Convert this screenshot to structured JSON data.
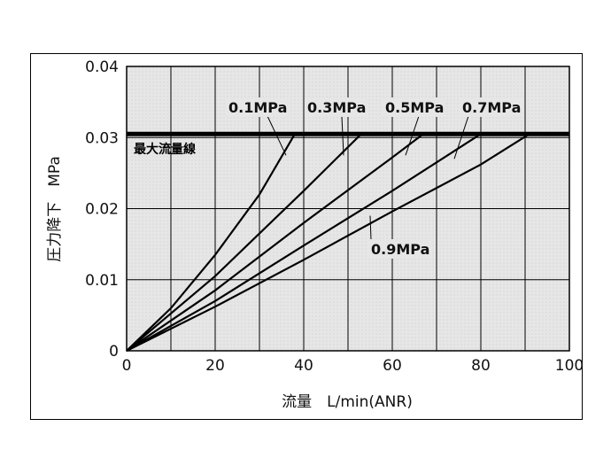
{
  "chart_data": {
    "type": "line",
    "title": "",
    "xlabel": "流量　L/min(ANR)",
    "ylabel": "圧力降下　MPa",
    "xlim": [
      0,
      100
    ],
    "ylim": [
      0,
      0.04
    ],
    "grid": true,
    "x_ticks": [
      "0",
      "20",
      "40",
      "60",
      "80",
      "100"
    ],
    "y_ticks": [
      "0",
      "0.01",
      "0.02",
      "0.03",
      "0.04"
    ],
    "max_flow_line": {
      "label": "最大流量線",
      "y": 0.0305
    },
    "series": [
      {
        "name": "0.1MPa",
        "points": [
          [
            0,
            0
          ],
          [
            10,
            0.006
          ],
          [
            20,
            0.0135
          ],
          [
            30,
            0.022
          ],
          [
            38,
            0.0305
          ]
        ],
        "label_at": [
          36,
          0.0275
        ]
      },
      {
        "name": "0.3MPa",
        "points": [
          [
            0,
            0
          ],
          [
            20,
            0.0105
          ],
          [
            40,
            0.0225
          ],
          [
            53,
            0.0305
          ]
        ],
        "label_at": [
          49,
          0.0275
        ]
      },
      {
        "name": "0.5MPa",
        "points": [
          [
            0,
            0
          ],
          [
            20,
            0.0085
          ],
          [
            40,
            0.018
          ],
          [
            60,
            0.0272
          ],
          [
            67,
            0.0305
          ]
        ],
        "label_at": [
          63,
          0.0275
        ]
      },
      {
        "name": "0.7MPa",
        "points": [
          [
            0,
            0
          ],
          [
            20,
            0.007
          ],
          [
            40,
            0.0148
          ],
          [
            60,
            0.0225
          ],
          [
            80,
            0.0305
          ]
        ],
        "label_at": [
          74,
          0.027
        ]
      },
      {
        "name": "0.9MPa",
        "points": [
          [
            0,
            0
          ],
          [
            20,
            0.0062
          ],
          [
            40,
            0.0128
          ],
          [
            60,
            0.0196
          ],
          [
            80,
            0.0262
          ],
          [
            91,
            0.0305
          ]
        ],
        "label_at": [
          55,
          0.019
        ]
      }
    ]
  }
}
